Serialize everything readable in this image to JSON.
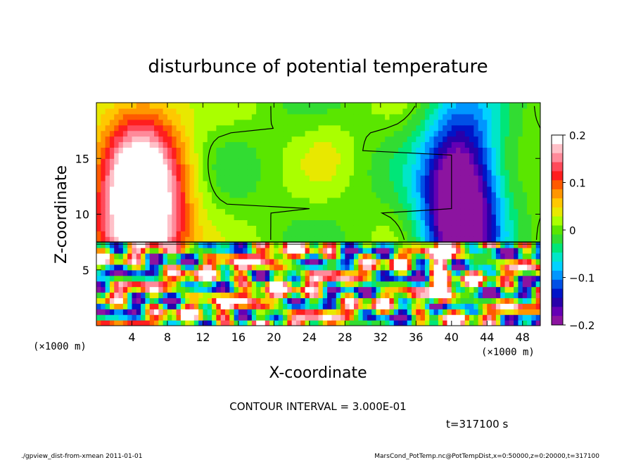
{
  "chart_data": {
    "type": "heatmap",
    "title": "disturbunce of potential temperature",
    "xlabel": "X-coordinate",
    "ylabel": "Z-coordinate",
    "x_unit_label": "(×1000 m)",
    "y_unit_label": "(×1000 m)",
    "xlim": [
      0,
      50
    ],
    "ylim": [
      0,
      20
    ],
    "x_ticks": [
      "4",
      "8",
      "12",
      "16",
      "20",
      "24",
      "28",
      "32",
      "36",
      "40",
      "44",
      "48"
    ],
    "y_ticks": [
      "5",
      "10",
      "15"
    ],
    "colorbar": {
      "range": [
        -0.2,
        0.2
      ],
      "tick_labels": [
        "0.2",
        "0.1",
        "0",
        "−0.1",
        "−0.2"
      ],
      "colors": [
        "#ffffff",
        "#ffc0c8",
        "#ff8a9a",
        "#ff4a5a",
        "#ff1e1e",
        "#ff5a00",
        "#ff9600",
        "#ffc800",
        "#e8e800",
        "#aaff00",
        "#5ae600",
        "#32dc32",
        "#00e678",
        "#00e6c8",
        "#00d2ff",
        "#0096ff",
        "#0050e6",
        "#0014c8",
        "#2800aa",
        "#6400b4",
        "#8c14a0"
      ]
    },
    "fields": {
      "warm_plume_center_x": 5,
      "cold_plume_center_x": 41,
      "convective_layer_top_z": 7.5
    },
    "contour_interval": "CONTOUR INTERVAL = 3.000E-01"
  },
  "annotations": {
    "time_label": "t=317100 s",
    "footer_left": "./gpview_dist-from-xmean   2011-01-01",
    "footer_right": "MarsCond_PotTemp.nc@PotTempDist,x=0:50000,z=0:20000,t=317100"
  }
}
